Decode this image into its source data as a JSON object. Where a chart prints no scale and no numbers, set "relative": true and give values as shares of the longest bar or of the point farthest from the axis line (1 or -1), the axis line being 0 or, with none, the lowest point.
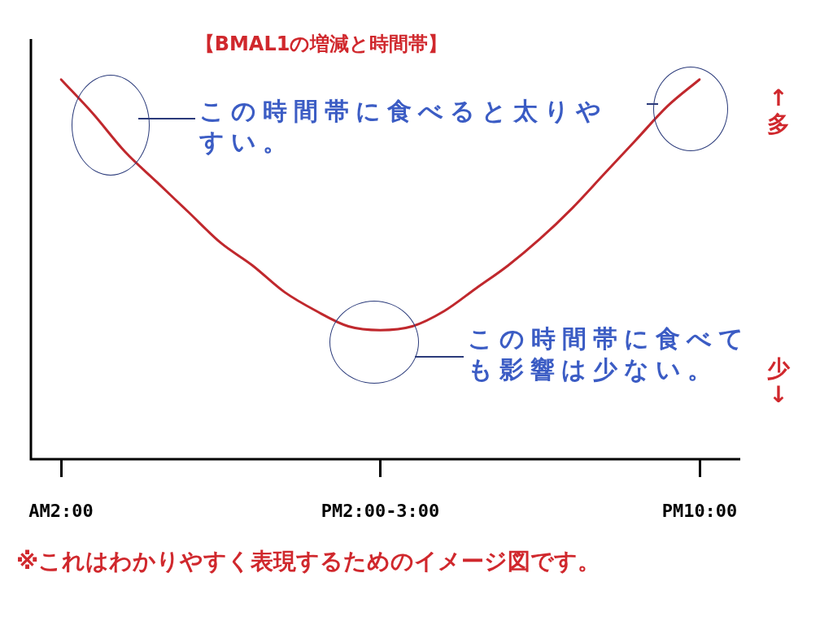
{
  "chart_data": {
    "type": "line",
    "title": "【BMAL1の増減と時間帯】",
    "relative": true,
    "legend": false,
    "grid": false,
    "marker": "none",
    "line_style": "solid",
    "tick_labels": "x",
    "categories": [
      "AM2:00",
      null,
      null,
      null,
      null,
      null,
      null,
      null,
      null,
      null,
      "PM2:00-3:00",
      null,
      null,
      null,
      null,
      null,
      null,
      null,
      null,
      null,
      "PM10:00"
    ],
    "series": [
      {
        "color": "#c0282d",
        "values": [
          1,
          0.91,
          0.81,
          0.73,
          0.65,
          0.57,
          0.51,
          0.44,
          0.39,
          0.35,
          0.34,
          0.35,
          0.39,
          0.45,
          0.51,
          0.58,
          0.66,
          0.75,
          0.84,
          0.93,
          1
        ]
      }
    ],
    "annotations": [
      "この時間帯に食べると太りやすい。",
      "この時間帯に食べても影響は少ない。",
      "↑多",
      "少↓",
      "※これはわかりやすく表現するためのイメージ図です。"
    ]
  }
}
